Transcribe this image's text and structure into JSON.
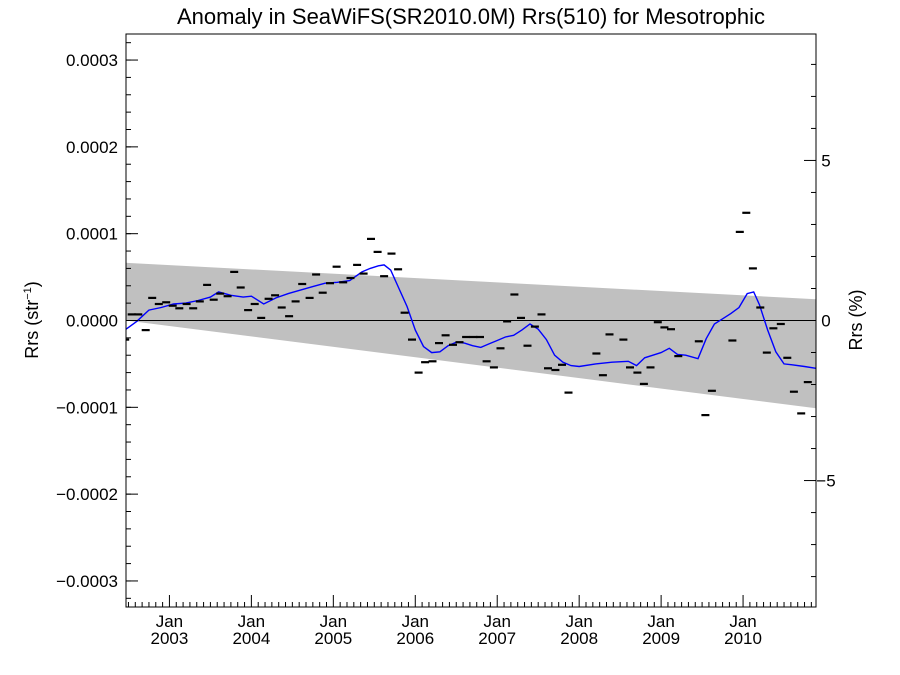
{
  "chart_data": {
    "type": "line",
    "title": "Anomaly in SeaWiFS(SR2010.0M) Rrs(510) for Mesotrophic",
    "ylabel": "Rrs (str",
    "ylabel_sup": "−1",
    "ylabel_close": ")",
    "y2label": "Rrs (%)",
    "xlim": [
      2002.47,
      2010.89
    ],
    "ylim": [
      -0.00033,
      0.00033
    ],
    "y2lim": [
      -8.95,
      8.95
    ],
    "grid": false,
    "x_ticks": [
      {
        "value": 2003.0,
        "month": "Jan",
        "year": "2003"
      },
      {
        "value": 2004.0,
        "month": "Jan",
        "year": "2004"
      },
      {
        "value": 2005.0,
        "month": "Jan",
        "year": "2005"
      },
      {
        "value": 2006.0,
        "month": "Jan",
        "year": "2006"
      },
      {
        "value": 2007.0,
        "month": "Jan",
        "year": "2007"
      },
      {
        "value": 2008.0,
        "month": "Jan",
        "year": "2008"
      },
      {
        "value": 2009.0,
        "month": "Jan",
        "year": "2009"
      },
      {
        "value": 2010.0,
        "month": "Jan",
        "year": "2010"
      }
    ],
    "y_ticks": [
      {
        "value": 0.0003,
        "label": "0.0003"
      },
      {
        "value": 0.0002,
        "label": "0.0002"
      },
      {
        "value": 0.0001,
        "label": "0.0001"
      },
      {
        "value": 0.0,
        "label": "0.0000"
      },
      {
        "value": -0.0001,
        "label": "−0.0001"
      },
      {
        "value": -0.0002,
        "label": "−0.0002"
      },
      {
        "value": -0.0003,
        "label": "−0.0003"
      }
    ],
    "y2_ticks": [
      {
        "value": 5,
        "label": "5"
      },
      {
        "value": 0,
        "label": "0"
      },
      {
        "value": -5,
        "label": "−5"
      }
    ],
    "band": {
      "x": [
        2002.47,
        2010.89
      ],
      "upper": [
        6.65e-05,
        2.45e-05
      ],
      "lower": [
        0.0,
        -0.000101
      ],
      "color": "#c0c0c0"
    },
    "zero_line_color": "#000000",
    "line_color": "#0000ff",
    "marker_color": "#000000",
    "points": [
      {
        "x": 2002.46,
        "y": -2.2e-05
      },
      {
        "x": 2002.54,
        "y": 7e-06
      },
      {
        "x": 2002.62,
        "y": 7e-06
      },
      {
        "x": 2002.71,
        "y": -1.1e-05
      },
      {
        "x": 2002.79,
        "y": 2.6e-05
      },
      {
        "x": 2002.87,
        "y": 1.9e-05
      },
      {
        "x": 2002.96,
        "y": 2.1e-05
      },
      {
        "x": 2003.04,
        "y": 1.7e-05
      },
      {
        "x": 2003.12,
        "y": 1.4e-05
      },
      {
        "x": 2003.21,
        "y": 1.9e-05
      },
      {
        "x": 2003.29,
        "y": 1.4e-05
      },
      {
        "x": 2003.37,
        "y": 2.2e-05
      },
      {
        "x": 2003.46,
        "y": 4.1e-05
      },
      {
        "x": 2003.54,
        "y": 2.4e-05
      },
      {
        "x": 2003.62,
        "y": 3.1e-05
      },
      {
        "x": 2003.71,
        "y": 2.8e-05
      },
      {
        "x": 2003.79,
        "y": 5.6e-05
      },
      {
        "x": 2003.87,
        "y": 3.8e-05
      },
      {
        "x": 2003.96,
        "y": 1.2e-05
      },
      {
        "x": 2004.04,
        "y": 1.9e-05
      },
      {
        "x": 2004.12,
        "y": 3e-06
      },
      {
        "x": 2004.21,
        "y": 2.5e-05
      },
      {
        "x": 2004.29,
        "y": 2.9e-05
      },
      {
        "x": 2004.37,
        "y": 1.5e-05
      },
      {
        "x": 2004.46,
        "y": 5e-06
      },
      {
        "x": 2004.54,
        "y": 2.2e-05
      },
      {
        "x": 2004.62,
        "y": 4.2e-05
      },
      {
        "x": 2004.71,
        "y": 2.6e-05
      },
      {
        "x": 2004.79,
        "y": 5.3e-05
      },
      {
        "x": 2004.87,
        "y": 3.2e-05
      },
      {
        "x": 2004.96,
        "y": 4.3e-05
      },
      {
        "x": 2005.04,
        "y": 6.2e-05
      },
      {
        "x": 2005.12,
        "y": 4.4e-05
      },
      {
        "x": 2005.21,
        "y": 4.9e-05
      },
      {
        "x": 2005.29,
        "y": 6.4e-05
      },
      {
        "x": 2005.37,
        "y": 5.4e-05
      },
      {
        "x": 2005.46,
        "y": 9.4e-05
      },
      {
        "x": 2005.54,
        "y": 7.9e-05
      },
      {
        "x": 2005.62,
        "y": 5.1e-05
      },
      {
        "x": 2005.71,
        "y": 7.7e-05
      },
      {
        "x": 2005.79,
        "y": 5.9e-05
      },
      {
        "x": 2005.87,
        "y": 9e-06
      },
      {
        "x": 2005.96,
        "y": -2.2e-05
      },
      {
        "x": 2006.04,
        "y": -6e-05
      },
      {
        "x": 2006.12,
        "y": -4.8e-05
      },
      {
        "x": 2006.21,
        "y": -4.7e-05
      },
      {
        "x": 2006.29,
        "y": -2.6e-05
      },
      {
        "x": 2006.37,
        "y": -1.7e-05
      },
      {
        "x": 2006.46,
        "y": -2.8e-05
      },
      {
        "x": 2006.54,
        "y": -2.5e-05
      },
      {
        "x": 2006.62,
        "y": -1.9e-05
      },
      {
        "x": 2006.71,
        "y": -1.9e-05
      },
      {
        "x": 2006.79,
        "y": -1.9e-05
      },
      {
        "x": 2006.87,
        "y": -4.7e-05
      },
      {
        "x": 2006.96,
        "y": -5.4e-05
      },
      {
        "x": 2007.04,
        "y": -3.2e-05
      },
      {
        "x": 2007.12,
        "y": -1e-06
      },
      {
        "x": 2007.21,
        "y": 3e-05
      },
      {
        "x": 2007.29,
        "y": 3e-06
      },
      {
        "x": 2007.37,
        "y": -2.9e-05
      },
      {
        "x": 2007.46,
        "y": -7e-06
      },
      {
        "x": 2007.54,
        "y": 7e-06
      },
      {
        "x": 2007.62,
        "y": -5.5e-05
      },
      {
        "x": 2007.71,
        "y": -5.7e-05
      },
      {
        "x": 2007.79,
        "y": -5.1e-05
      },
      {
        "x": 2007.87,
        "y": -8.3e-05
      },
      {
        "x": 2008.21,
        "y": -3.8e-05
      },
      {
        "x": 2008.29,
        "y": -6.3e-05
      },
      {
        "x": 2008.37,
        "y": -1.6e-05
      },
      {
        "x": 2008.54,
        "y": -2.2e-05
      },
      {
        "x": 2008.62,
        "y": -5.4e-05
      },
      {
        "x": 2008.71,
        "y": -6e-05
      },
      {
        "x": 2008.79,
        "y": -7.3e-05
      },
      {
        "x": 2008.87,
        "y": -5.4e-05
      },
      {
        "x": 2008.96,
        "y": -2e-06
      },
      {
        "x": 2009.04,
        "y": -8e-06
      },
      {
        "x": 2009.12,
        "y": -1e-05
      },
      {
        "x": 2009.21,
        "y": -4.1e-05
      },
      {
        "x": 2009.46,
        "y": -2.4e-05
      },
      {
        "x": 2009.54,
        "y": -0.000109
      },
      {
        "x": 2009.62,
        "y": -8.1e-05
      },
      {
        "x": 2009.87,
        "y": -2.3e-05
      },
      {
        "x": 2009.96,
        "y": 0.000102
      },
      {
        "x": 2010.04,
        "y": 0.000124
      },
      {
        "x": 2010.12,
        "y": 6e-05
      },
      {
        "x": 2010.21,
        "y": 1.5e-05
      },
      {
        "x": 2010.29,
        "y": -3.7e-05
      },
      {
        "x": 2010.37,
        "y": -9e-06
      },
      {
        "x": 2010.46,
        "y": -4e-06
      },
      {
        "x": 2010.54,
        "y": -4.3e-05
      },
      {
        "x": 2010.62,
        "y": -8.2e-05
      },
      {
        "x": 2010.71,
        "y": -0.000107
      },
      {
        "x": 2010.79,
        "y": -7.1e-05
      }
    ],
    "smoothed": {
      "x": [
        2002.47,
        2002.6,
        2002.75,
        2002.9,
        2003.05,
        2003.2,
        2003.35,
        2003.5,
        2003.6,
        2003.75,
        2003.9,
        2004.0,
        2004.15,
        2004.3,
        2004.45,
        2004.6,
        2004.75,
        2004.9,
        2005.05,
        2005.2,
        2005.35,
        2005.45,
        2005.55,
        2005.62,
        2005.7,
        2005.8,
        2005.9,
        2006.0,
        2006.1,
        2006.2,
        2006.3,
        2006.4,
        2006.5,
        2006.6,
        2006.7,
        2006.8,
        2006.9,
        2007.0,
        2007.1,
        2007.2,
        2007.3,
        2007.4,
        2007.5,
        2007.6,
        2007.7,
        2007.8,
        2007.9,
        2008.0,
        2008.2,
        2008.4,
        2008.6,
        2008.7,
        2008.8,
        2008.9,
        2009.0,
        2009.1,
        2009.2,
        2009.3,
        2009.45,
        2009.55,
        2009.65,
        2009.75,
        2009.85,
        2009.95,
        2010.05,
        2010.13,
        2010.2,
        2010.3,
        2010.4,
        2010.5,
        2010.6,
        2010.75,
        2010.89
      ],
      "y": [
        -1e-05,
        -1e-06,
        1.2e-05,
        1.5e-05,
        1.9e-05,
        2e-05,
        2.3e-05,
        2.7e-05,
        3.3e-05,
        2.9e-05,
        2.7e-05,
        2.8e-05,
        1.9e-05,
        2.6e-05,
        3.1e-05,
        3.5e-05,
        3.9e-05,
        4.3e-05,
        4.4e-05,
        4.6e-05,
        5.6e-05,
        6e-05,
        6.3e-05,
        6.4e-05,
        5.8e-05,
        3.7e-05,
        1.6e-05,
        -1.1e-05,
        -3e-05,
        -3.7e-05,
        -3.6e-05,
        -2.9e-05,
        -2.5e-05,
        -2.6e-05,
        -2.9e-05,
        -3.1e-05,
        -2.7e-05,
        -2.3e-05,
        -1.9e-05,
        -1.7e-05,
        -1.1e-05,
        -4e-06,
        -1e-05,
        -2.2e-05,
        -4e-05,
        -4.8e-05,
        -5.2e-05,
        -5.3e-05,
        -5e-05,
        -4.8e-05,
        -4.7e-05,
        -5.2e-05,
        -4.3e-05,
        -4e-05,
        -3.7e-05,
        -3.2e-05,
        -3.9e-05,
        -4e-05,
        -4.4e-05,
        -2.1e-05,
        -4e-06,
        2e-06,
        8e-06,
        1.5e-05,
        3.1e-05,
        3.3e-05,
        1.8e-05,
        -1.1e-05,
        -3.6e-05,
        -5e-05,
        -5.1e-05,
        -5.3e-05,
        -5.5e-05
      ]
    }
  }
}
